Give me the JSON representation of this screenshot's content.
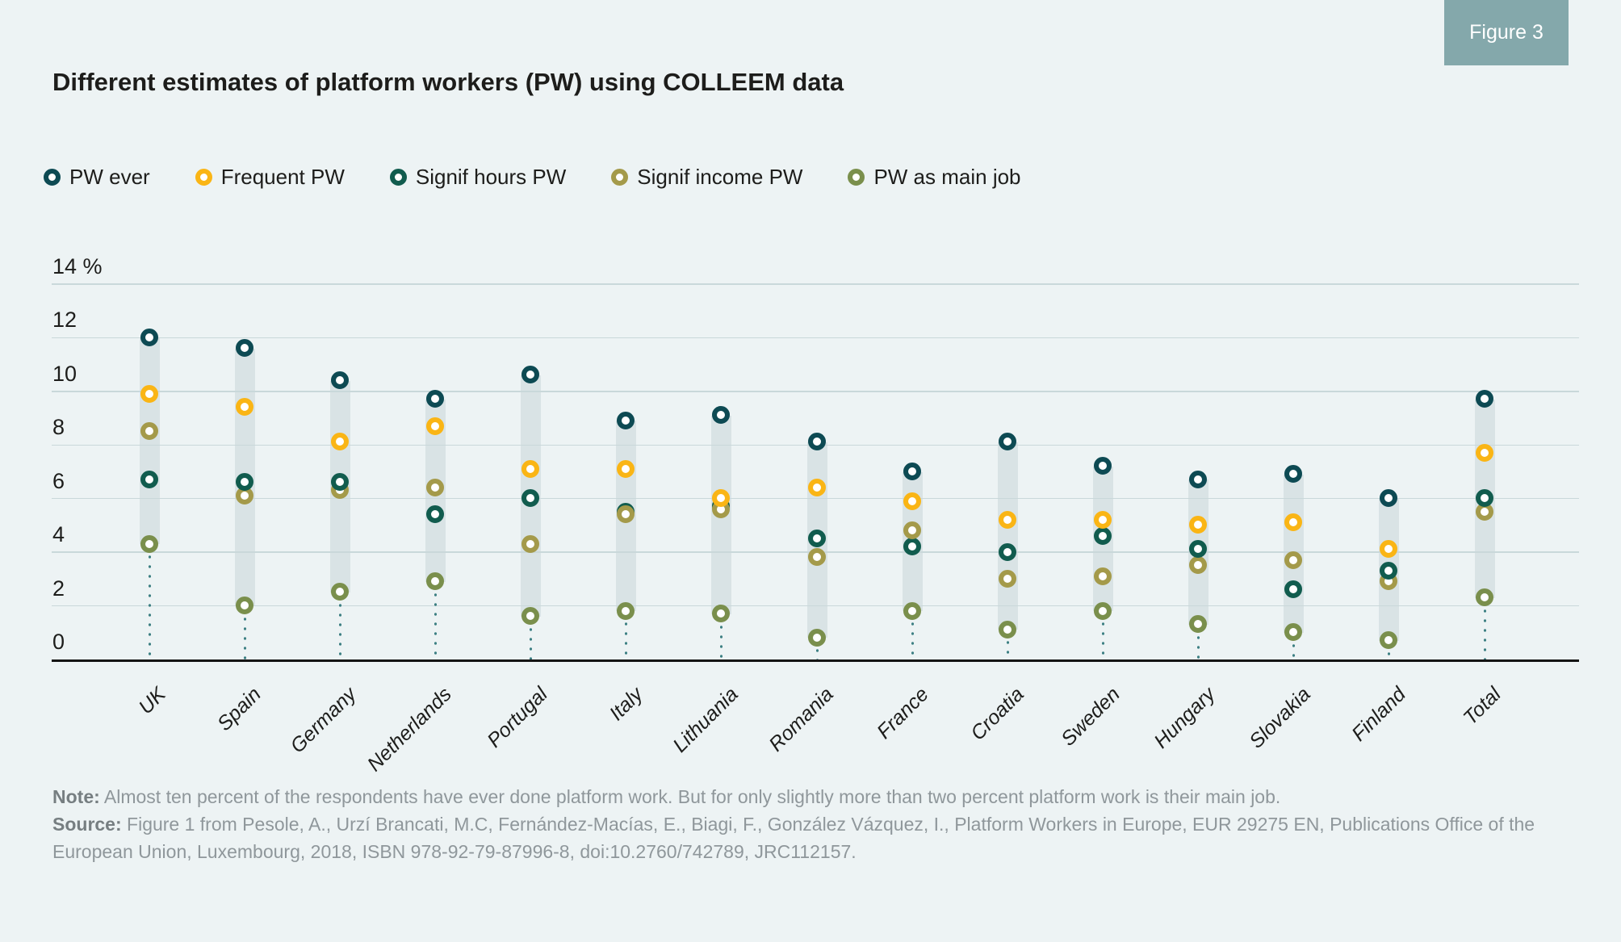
{
  "figure_tag": "Figure 3",
  "title": "Different estimates of platform workers (PW) using COLLEEM data",
  "chart_data": {
    "type": "scatter",
    "title": "Different estimates of platform workers (PW) using COLLEEM data",
    "unit": "%",
    "ylim": [
      0,
      14
    ],
    "grid": true,
    "legend_position": "top-left",
    "yticks": [
      {
        "value": 14,
        "label": "14 %"
      },
      {
        "value": 12,
        "label": "12"
      },
      {
        "value": 10,
        "label": "10"
      },
      {
        "value": 8,
        "label": "8"
      },
      {
        "value": 6,
        "label": "6"
      },
      {
        "value": 4,
        "label": "4"
      },
      {
        "value": 2,
        "label": "2"
      },
      {
        "value": 0,
        "label": "0"
      }
    ],
    "categories": [
      "UK",
      "Spain",
      "Germany",
      "Netherlands",
      "Portugal",
      "Italy",
      "Lithuania",
      "Romania",
      "France",
      "Croatia",
      "Sweden",
      "Hungary",
      "Slovakia",
      "Finland",
      "Total"
    ],
    "series": [
      {
        "name": "PW ever",
        "key": "ever",
        "color": "#0d4a53",
        "values": [
          12.0,
          11.6,
          10.4,
          9.7,
          10.6,
          8.9,
          9.1,
          8.1,
          7.0,
          8.1,
          7.2,
          6.7,
          6.9,
          6.0,
          9.7
        ]
      },
      {
        "name": "Frequent PW",
        "key": "frequent",
        "color": "#fab515",
        "values": [
          9.9,
          9.4,
          8.1,
          8.7,
          7.1,
          7.1,
          6.0,
          6.4,
          5.9,
          5.2,
          5.2,
          5.0,
          5.1,
          4.1,
          7.7
        ]
      },
      {
        "name": "Signif hours PW",
        "key": "hours",
        "color": "#115c4e",
        "values": [
          6.7,
          6.6,
          6.6,
          5.4,
          6.0,
          5.5,
          5.7,
          4.5,
          4.2,
          4.0,
          4.6,
          4.1,
          2.6,
          3.3,
          6.0
        ]
      },
      {
        "name": "Signif income PW",
        "key": "income",
        "color": "#a49a4a",
        "values": [
          8.5,
          6.1,
          6.3,
          6.4,
          4.3,
          5.4,
          5.6,
          3.8,
          4.8,
          3.0,
          3.1,
          3.5,
          3.7,
          2.9,
          5.5
        ]
      },
      {
        "name": "PW as main job",
        "key": "main",
        "color": "#7a8f4c",
        "values": [
          4.3,
          2.0,
          2.5,
          2.9,
          1.6,
          1.8,
          1.7,
          0.8,
          1.8,
          1.1,
          1.8,
          1.3,
          1.0,
          0.7,
          2.3
        ]
      }
    ]
  },
  "note": {
    "label": "Note:",
    "text": "Almost ten percent of the respondents have ever done platform work. But for only slightly more than two percent platform work is their main job."
  },
  "source": {
    "label": "Source:",
    "text": "Figure 1 from Pesole, A., Urzí Brancati, M.C, Fernández-Macías, E., Biagi, F., González Vázquez, I., Platform Workers in Europe, EUR 29275 EN, Publications Office of the European Union, Luxembourg, 2018, ISBN 978-92-79-87996-8, doi:10.2760/742789, JRC112157."
  },
  "colors": {
    "background": "#edf3f4",
    "band": "#d9e3e5",
    "gridline": "#c9d8da",
    "axis": "#141414",
    "figure_tag_bg": "#84a8ab",
    "leader_dots": "#3f8184"
  }
}
